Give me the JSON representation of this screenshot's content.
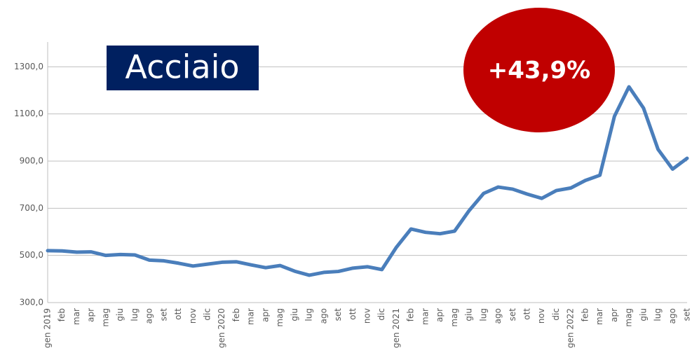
{
  "chart_data": {
    "type": "line",
    "title": "Acciaio",
    "annotation": "+43,9%",
    "categories": [
      "gen 2019",
      "feb",
      "mar",
      "apr",
      "mag",
      "giu",
      "lug",
      "ago",
      "set",
      "ott",
      "nov",
      "dic",
      "gen 2020",
      "feb",
      "mar",
      "apr",
      "mag",
      "giu",
      "lug",
      "ago",
      "set",
      "ott",
      "nov",
      "dic",
      "gen 2021",
      "feb",
      "mar",
      "apr",
      "mag",
      "giu",
      "lug",
      "ago",
      "set",
      "ott",
      "nov",
      "dic",
      "gen 2022",
      "feb",
      "mar",
      "apr",
      "mag",
      "giu",
      "lug",
      "ago",
      "set"
    ],
    "series": [
      {
        "name": "Acciaio",
        "color": "#4a7ebb",
        "values": [
          520,
          519,
          514,
          515,
          500,
          504,
          502,
          480,
          477,
          467,
          455,
          463,
          471,
          473,
          460,
          448,
          457,
          433,
          416,
          428,
          432,
          446,
          452,
          440,
          535,
          612,
          598,
          592,
          603,
          690,
          763,
          790,
          781,
          760,
          742,
          775,
          786,
          818,
          840,
          1090,
          1215,
          1125,
          950,
          866,
          912
        ]
      }
    ],
    "ylim": [
      300,
      1405
    ],
    "yticks": [
      {
        "value": 300,
        "label": "300,0"
      },
      {
        "value": 500,
        "label": "500,0"
      },
      {
        "value": 700,
        "label": "700,0"
      },
      {
        "value": 900,
        "label": "900,0"
      },
      {
        "value": 1100,
        "label": "1100,0"
      },
      {
        "value": 1300,
        "label": "1300,0"
      }
    ],
    "grid": true
  }
}
